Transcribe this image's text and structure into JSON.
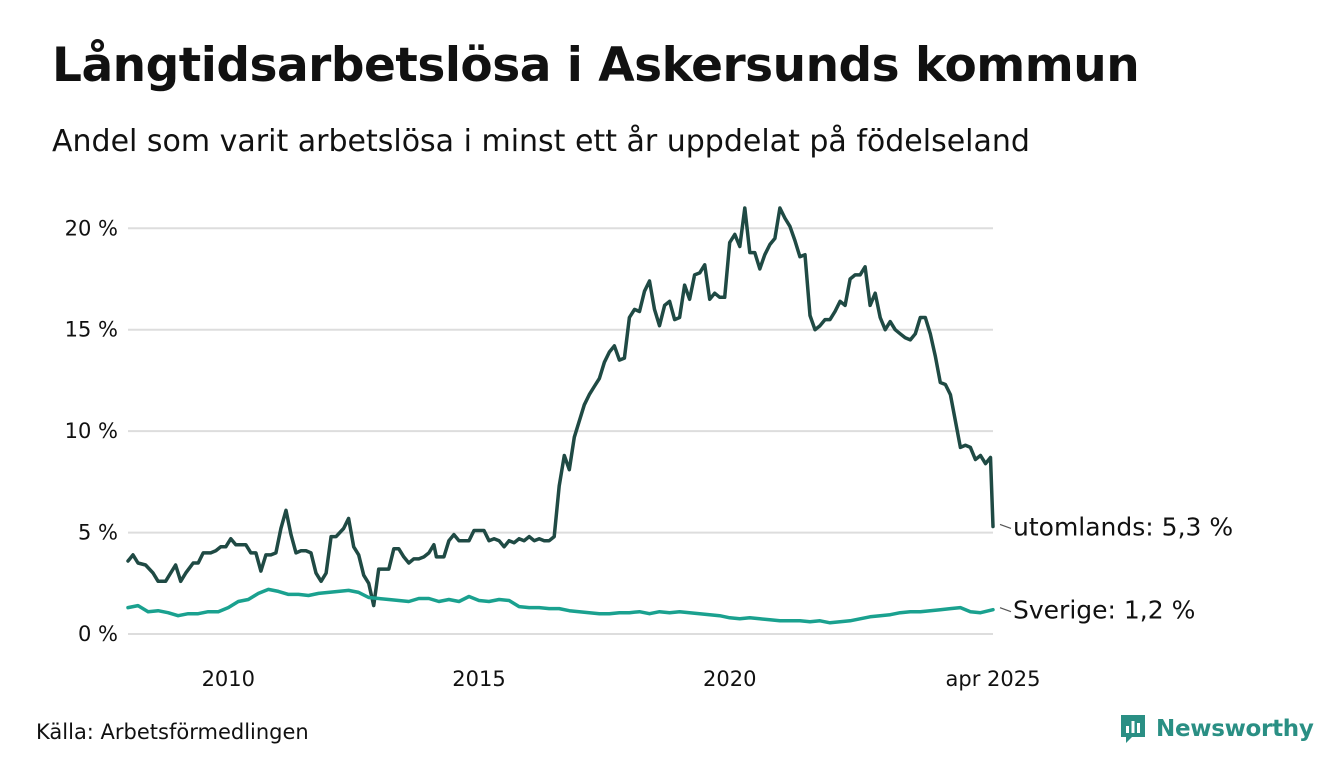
{
  "title": "Långtidsarbetslösa i Askersunds kommun",
  "subtitle": "Andel som varit arbetslösa i minst ett år uppdelat på födelseland",
  "source": "Källa: Arbetsförmedlingen",
  "brand": {
    "name": "Newsworthy",
    "icon": "newsworthy-logo-icon",
    "color": "#2a8f84"
  },
  "chart_data": {
    "type": "line",
    "x_unit": "decimal year",
    "xlim": [
      2008.0,
      2025.25
    ],
    "ylim": [
      0,
      21
    ],
    "y_ticks": [
      {
        "value": 0,
        "label": "0 %"
      },
      {
        "value": 5,
        "label": "5 %"
      },
      {
        "value": 10,
        "label": "10 %"
      },
      {
        "value": 15,
        "label": "15 %"
      },
      {
        "value": 20,
        "label": "20 %"
      }
    ],
    "x_ticks": [
      {
        "value": 2010,
        "label": "2010"
      },
      {
        "value": 2015,
        "label": "2015"
      },
      {
        "value": 2020,
        "label": "2020"
      },
      {
        "value": 2025.25,
        "label": "apr 2025"
      }
    ],
    "grid": "horizontal",
    "series": [
      {
        "end_label": "utomlands: 5,3 %",
        "color": "#1f4a44",
        "points": [
          [
            2008.0,
            3.6
          ],
          [
            2008.1,
            3.9
          ],
          [
            2008.2,
            3.5
          ],
          [
            2008.35,
            3.4
          ],
          [
            2008.5,
            3.0
          ],
          [
            2008.6,
            2.6
          ],
          [
            2008.75,
            2.6
          ],
          [
            2008.85,
            3.0
          ],
          [
            2008.95,
            3.4
          ],
          [
            2009.05,
            2.6
          ],
          [
            2009.15,
            3.0
          ],
          [
            2009.3,
            3.5
          ],
          [
            2009.4,
            3.5
          ],
          [
            2009.5,
            4.0
          ],
          [
            2009.65,
            4.0
          ],
          [
            2009.75,
            4.1
          ],
          [
            2009.85,
            4.3
          ],
          [
            2009.95,
            4.3
          ],
          [
            2010.05,
            4.7
          ],
          [
            2010.15,
            4.4
          ],
          [
            2010.35,
            4.4
          ],
          [
            2010.45,
            4.0
          ],
          [
            2010.55,
            4.0
          ],
          [
            2010.65,
            3.1
          ],
          [
            2010.75,
            3.9
          ],
          [
            2010.85,
            3.9
          ],
          [
            2010.95,
            4.0
          ],
          [
            2011.05,
            5.2
          ],
          [
            2011.15,
            6.1
          ],
          [
            2011.25,
            4.9
          ],
          [
            2011.35,
            4.0
          ],
          [
            2011.45,
            4.1
          ],
          [
            2011.55,
            4.1
          ],
          [
            2011.65,
            4.0
          ],
          [
            2011.75,
            3.0
          ],
          [
            2011.85,
            2.6
          ],
          [
            2011.95,
            3.0
          ],
          [
            2012.05,
            4.8
          ],
          [
            2012.15,
            4.8
          ],
          [
            2012.3,
            5.2
          ],
          [
            2012.4,
            5.7
          ],
          [
            2012.5,
            4.3
          ],
          [
            2012.6,
            3.9
          ],
          [
            2012.7,
            2.9
          ],
          [
            2012.8,
            2.5
          ],
          [
            2012.9,
            1.4
          ],
          [
            2013.0,
            3.2
          ],
          [
            2013.1,
            3.2
          ],
          [
            2013.2,
            3.2
          ],
          [
            2013.3,
            4.2
          ],
          [
            2013.4,
            4.2
          ],
          [
            2013.5,
            3.8
          ],
          [
            2013.6,
            3.5
          ],
          [
            2013.7,
            3.7
          ],
          [
            2013.8,
            3.7
          ],
          [
            2013.9,
            3.8
          ],
          [
            2014.0,
            4.0
          ],
          [
            2014.1,
            4.4
          ],
          [
            2014.15,
            3.8
          ],
          [
            2014.3,
            3.8
          ],
          [
            2014.4,
            4.6
          ],
          [
            2014.5,
            4.9
          ],
          [
            2014.6,
            4.6
          ],
          [
            2014.7,
            4.6
          ],
          [
            2014.8,
            4.6
          ],
          [
            2014.9,
            5.1
          ],
          [
            2015.0,
            5.1
          ],
          [
            2015.1,
            5.1
          ],
          [
            2015.2,
            4.6
          ],
          [
            2015.3,
            4.7
          ],
          [
            2015.4,
            4.6
          ],
          [
            2015.5,
            4.3
          ],
          [
            2015.6,
            4.6
          ],
          [
            2015.7,
            4.5
          ],
          [
            2015.8,
            4.7
          ],
          [
            2015.9,
            4.6
          ],
          [
            2016.0,
            4.8
          ],
          [
            2016.1,
            4.6
          ],
          [
            2016.2,
            4.7
          ],
          [
            2016.3,
            4.6
          ],
          [
            2016.4,
            4.6
          ],
          [
            2016.5,
            4.8
          ],
          [
            2016.6,
            7.3
          ],
          [
            2016.7,
            8.8
          ],
          [
            2016.8,
            8.1
          ],
          [
            2016.9,
            9.7
          ],
          [
            2017.0,
            10.5
          ],
          [
            2017.1,
            11.3
          ],
          [
            2017.2,
            11.8
          ],
          [
            2017.3,
            12.2
          ],
          [
            2017.4,
            12.6
          ],
          [
            2017.5,
            13.4
          ],
          [
            2017.6,
            13.9
          ],
          [
            2017.7,
            14.2
          ],
          [
            2017.8,
            13.5
          ],
          [
            2017.9,
            13.6
          ],
          [
            2018.0,
            15.6
          ],
          [
            2018.1,
            16.0
          ],
          [
            2018.2,
            15.9
          ],
          [
            2018.3,
            16.9
          ],
          [
            2018.4,
            17.4
          ],
          [
            2018.5,
            16.0
          ],
          [
            2018.6,
            15.2
          ],
          [
            2018.7,
            16.2
          ],
          [
            2018.8,
            16.4
          ],
          [
            2018.9,
            15.5
          ],
          [
            2019.0,
            15.6
          ],
          [
            2019.1,
            17.2
          ],
          [
            2019.2,
            16.5
          ],
          [
            2019.3,
            17.7
          ],
          [
            2019.4,
            17.8
          ],
          [
            2019.5,
            18.2
          ],
          [
            2019.6,
            16.5
          ],
          [
            2019.7,
            16.8
          ],
          [
            2019.8,
            16.6
          ],
          [
            2019.9,
            16.6
          ],
          [
            2020.0,
            19.3
          ],
          [
            2020.1,
            19.7
          ],
          [
            2020.2,
            19.1
          ],
          [
            2020.3,
            21.0
          ],
          [
            2020.4,
            18.8
          ],
          [
            2020.5,
            18.8
          ],
          [
            2020.6,
            18.0
          ],
          [
            2020.7,
            18.7
          ],
          [
            2020.8,
            19.2
          ],
          [
            2020.9,
            19.5
          ],
          [
            2021.0,
            21.0
          ],
          [
            2021.1,
            20.5
          ],
          [
            2021.2,
            20.1
          ],
          [
            2021.3,
            19.4
          ],
          [
            2021.4,
            18.6
          ],
          [
            2021.5,
            18.7
          ],
          [
            2021.6,
            15.7
          ],
          [
            2021.7,
            15.0
          ],
          [
            2021.8,
            15.2
          ],
          [
            2021.9,
            15.5
          ],
          [
            2022.0,
            15.5
          ],
          [
            2022.1,
            15.9
          ],
          [
            2022.2,
            16.4
          ],
          [
            2022.3,
            16.2
          ],
          [
            2022.4,
            17.5
          ],
          [
            2022.5,
            17.7
          ],
          [
            2022.6,
            17.7
          ],
          [
            2022.7,
            18.1
          ],
          [
            2022.8,
            16.2
          ],
          [
            2022.9,
            16.8
          ],
          [
            2023.0,
            15.6
          ],
          [
            2023.1,
            15.0
          ],
          [
            2023.2,
            15.4
          ],
          [
            2023.3,
            15.0
          ],
          [
            2023.4,
            14.8
          ],
          [
            2023.5,
            14.6
          ],
          [
            2023.6,
            14.5
          ],
          [
            2023.7,
            14.8
          ],
          [
            2023.8,
            15.6
          ],
          [
            2023.9,
            15.6
          ],
          [
            2024.0,
            14.8
          ],
          [
            2024.1,
            13.7
          ],
          [
            2024.2,
            12.4
          ],
          [
            2024.3,
            12.3
          ],
          [
            2024.4,
            11.8
          ],
          [
            2024.5,
            10.5
          ],
          [
            2024.6,
            9.2
          ],
          [
            2024.7,
            9.3
          ],
          [
            2024.8,
            9.2
          ],
          [
            2024.9,
            8.6
          ],
          [
            2025.0,
            8.8
          ],
          [
            2025.1,
            8.4
          ],
          [
            2025.2,
            8.7
          ],
          [
            2025.25,
            5.3
          ]
        ]
      },
      {
        "end_label": "Sverige: 1,2 %",
        "color": "#1aa18f",
        "points": [
          [
            2008.0,
            1.3
          ],
          [
            2008.2,
            1.4
          ],
          [
            2008.4,
            1.1
          ],
          [
            2008.6,
            1.15
          ],
          [
            2008.8,
            1.05
          ],
          [
            2009.0,
            0.9
          ],
          [
            2009.2,
            1.0
          ],
          [
            2009.4,
            1.0
          ],
          [
            2009.6,
            1.1
          ],
          [
            2009.8,
            1.1
          ],
          [
            2010.0,
            1.3
          ],
          [
            2010.2,
            1.6
          ],
          [
            2010.4,
            1.7
          ],
          [
            2010.6,
            2.0
          ],
          [
            2010.8,
            2.2
          ],
          [
            2011.0,
            2.1
          ],
          [
            2011.2,
            1.95
          ],
          [
            2011.4,
            1.95
          ],
          [
            2011.6,
            1.9
          ],
          [
            2011.8,
            2.0
          ],
          [
            2012.0,
            2.05
          ],
          [
            2012.2,
            2.1
          ],
          [
            2012.4,
            2.15
          ],
          [
            2012.6,
            2.05
          ],
          [
            2012.8,
            1.8
          ],
          [
            2013.0,
            1.75
          ],
          [
            2013.2,
            1.7
          ],
          [
            2013.4,
            1.65
          ],
          [
            2013.6,
            1.6
          ],
          [
            2013.8,
            1.75
          ],
          [
            2014.0,
            1.75
          ],
          [
            2014.2,
            1.6
          ],
          [
            2014.4,
            1.7
          ],
          [
            2014.6,
            1.6
          ],
          [
            2014.8,
            1.85
          ],
          [
            2015.0,
            1.65
          ],
          [
            2015.2,
            1.6
          ],
          [
            2015.4,
            1.7
          ],
          [
            2015.6,
            1.65
          ],
          [
            2015.8,
            1.35
          ],
          [
            2016.0,
            1.3
          ],
          [
            2016.2,
            1.3
          ],
          [
            2016.4,
            1.25
          ],
          [
            2016.6,
            1.25
          ],
          [
            2016.8,
            1.15
          ],
          [
            2017.0,
            1.1
          ],
          [
            2017.2,
            1.05
          ],
          [
            2017.4,
            1.0
          ],
          [
            2017.6,
            1.0
          ],
          [
            2017.8,
            1.05
          ],
          [
            2018.0,
            1.05
          ],
          [
            2018.2,
            1.1
          ],
          [
            2018.4,
            1.0
          ],
          [
            2018.6,
            1.1
          ],
          [
            2018.8,
            1.05
          ],
          [
            2019.0,
            1.1
          ],
          [
            2019.2,
            1.05
          ],
          [
            2019.4,
            1.0
          ],
          [
            2019.6,
            0.95
          ],
          [
            2019.8,
            0.9
          ],
          [
            2020.0,
            0.8
          ],
          [
            2020.2,
            0.75
          ],
          [
            2020.4,
            0.8
          ],
          [
            2020.6,
            0.75
          ],
          [
            2020.8,
            0.7
          ],
          [
            2021.0,
            0.65
          ],
          [
            2021.2,
            0.65
          ],
          [
            2021.4,
            0.65
          ],
          [
            2021.6,
            0.6
          ],
          [
            2021.8,
            0.65
          ],
          [
            2022.0,
            0.55
          ],
          [
            2022.2,
            0.6
          ],
          [
            2022.4,
            0.65
          ],
          [
            2022.6,
            0.75
          ],
          [
            2022.8,
            0.85
          ],
          [
            2023.0,
            0.9
          ],
          [
            2023.2,
            0.95
          ],
          [
            2023.4,
            1.05
          ],
          [
            2023.6,
            1.1
          ],
          [
            2023.8,
            1.1
          ],
          [
            2024.0,
            1.15
          ],
          [
            2024.2,
            1.2
          ],
          [
            2024.4,
            1.25
          ],
          [
            2024.6,
            1.3
          ],
          [
            2024.8,
            1.1
          ],
          [
            2025.0,
            1.05
          ],
          [
            2025.25,
            1.2
          ]
        ]
      }
    ]
  }
}
